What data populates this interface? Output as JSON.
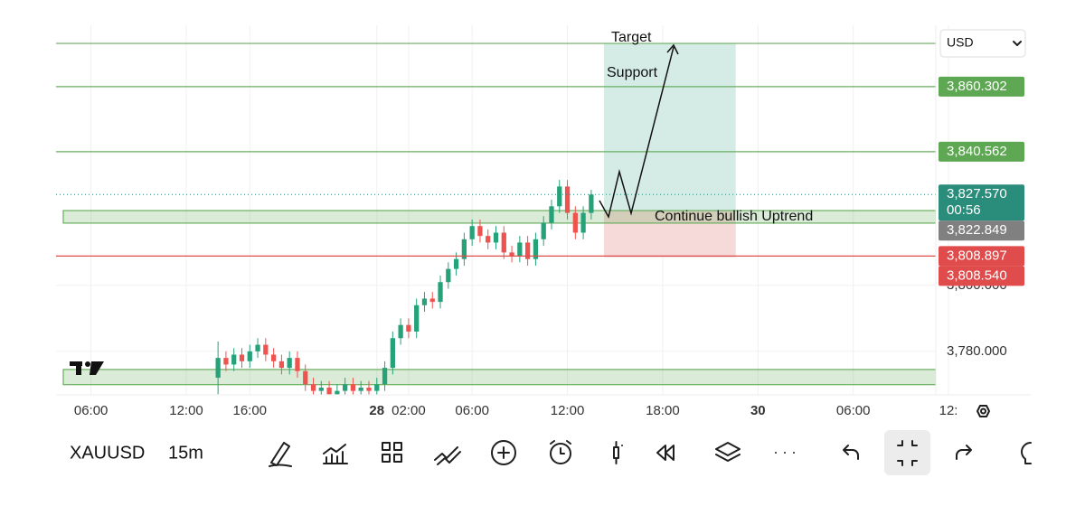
{
  "chart_data": {
    "type": "candlestick",
    "xlim": [
      -2.2,
      53.2
    ],
    "xticks": [
      {
        "value": 0,
        "label": "06:00"
      },
      {
        "value": 6,
        "label": "12:00"
      },
      {
        "value": 10,
        "label": "16:00"
      },
      {
        "value": 18,
        "label": "28"
      },
      {
        "value": 20,
        "label": "02:00"
      },
      {
        "value": 24,
        "label": "06:00"
      },
      {
        "value": 30,
        "label": "12:00"
      },
      {
        "value": 36,
        "label": "18:00"
      },
      {
        "value": 42,
        "label": "30"
      },
      {
        "value": 48,
        "label": "06:00"
      },
      {
        "value": 54,
        "label": "12:"
      }
    ],
    "ylim": [
      3766.8,
      3878.9
    ],
    "yticks": [
      {
        "value": 3780,
        "label": "3,780.000"
      },
      {
        "value": 3800,
        "label": "3,800.000"
      }
    ],
    "grid": true,
    "up_color": "#26a27a",
    "down_color": "#ef5350",
    "x": [
      8,
      8.5,
      9,
      9.5,
      10,
      10.5,
      11,
      11.5,
      12,
      12.5,
      13,
      13.5,
      14,
      14.5,
      15,
      15.5,
      16,
      16.5,
      17,
      17.5,
      18,
      18.5,
      19,
      19.5,
      20,
      20.5,
      21,
      21.5,
      22,
      22.5,
      23,
      23.5,
      24,
      24.5,
      25,
      25.5,
      26,
      26.5,
      27,
      27.5,
      28,
      28.5,
      29,
      29.5,
      30,
      30.5,
      31,
      31.5
    ],
    "open": [
      3772,
      3778,
      3776,
      3779,
      3777,
      3780,
      3782,
      3779,
      3777,
      3775,
      3778,
      3774,
      3770,
      3768,
      3769,
      3767,
      3768,
      3770,
      3768,
      3769,
      3768,
      3770,
      3775,
      3784,
      3788,
      3786,
      3794,
      3796,
      3795,
      3801,
      3805,
      3808,
      3814,
      3818,
      3815,
      3813,
      3816,
      3810,
      3809,
      3813,
      3808,
      3814,
      3819,
      3824,
      3830,
      3822,
      3816,
      3822
    ],
    "high": [
      3783,
      3780,
      3781,
      3781,
      3782,
      3784,
      3784,
      3781,
      3779,
      3780,
      3780,
      3776,
      3772,
      3771,
      3771,
      3770,
      3772,
      3772,
      3771,
      3771,
      3772,
      3777,
      3786,
      3790,
      3790,
      3796,
      3798,
      3798,
      3803,
      3807,
      3810,
      3816,
      3820,
      3820,
      3817,
      3818,
      3818,
      3812,
      3815,
      3815,
      3816,
      3821,
      3826,
      3832,
      3832,
      3824,
      3824,
      3829
    ],
    "low": [
      3767,
      3774,
      3774,
      3775,
      3775,
      3778,
      3777,
      3775,
      3773,
      3773,
      3772,
      3768,
      3766,
      3766,
      3765,
      3765,
      3766,
      3766,
      3766,
      3766,
      3766,
      3768,
      3773,
      3782,
      3784,
      3784,
      3792,
      3793,
      3793,
      3799,
      3803,
      3806,
      3812,
      3813,
      3811,
      3811,
      3808,
      3807,
      3807,
      3806,
      3806,
      3812,
      3817,
      3822,
      3820,
      3814,
      3814,
      3820
    ],
    "close": [
      3778,
      3776,
      3779,
      3777,
      3780,
      3782,
      3779,
      3777,
      3775,
      3778,
      3774,
      3770,
      3768,
      3769,
      3767,
      3768,
      3770,
      3768,
      3769,
      3768,
      3770,
      3775,
      3784,
      3788,
      3786,
      3794,
      3796,
      3795,
      3801,
      3805,
      3808,
      3814,
      3818,
      3815,
      3813,
      3816,
      3810,
      3809,
      3813,
      3808,
      3814,
      3819,
      3824,
      3830,
      3822,
      3816,
      3822,
      3827.57
    ],
    "hlines": [
      {
        "value": 3873.4,
        "color": "#6aae5f"
      },
      {
        "value": 3860.302,
        "color": "#6aae5f"
      },
      {
        "value": 3840.562,
        "color": "#6aae5f"
      },
      {
        "value": 3808.897,
        "color": "#e04b4b"
      }
    ],
    "last_price": {
      "value": 3827.57,
      "color": "#2a8c7a"
    },
    "zones": [
      {
        "from": 3818.9,
        "to": 3822.7,
        "color": "#6aae5f"
      },
      {
        "from": 3769.9,
        "to": 3774.5,
        "color": "#6aae5f"
      }
    ],
    "position": {
      "x0": 32.3,
      "x1": 40.6,
      "target": 3873.4,
      "entry": 3822.849,
      "stop": 3808.54,
      "profit_color": "#d4ebe6",
      "loss_color": "#f6d9d9"
    },
    "price_labels": [
      {
        "value": 3860.302,
        "label": "3,860.302",
        "color": "#5fa853"
      },
      {
        "value": 3840.562,
        "label": "3,840.562",
        "color": "#5fa853"
      },
      {
        "value": 3827.57,
        "label": "3,827.570",
        "countdown": "00:56",
        "color": "#2a8c7a"
      },
      {
        "value": 3822.849,
        "label": "3,822.849",
        "color": "#808080"
      },
      {
        "value": 3808.897,
        "label": "3,808.897",
        "color": "#e04b4b"
      },
      {
        "value": 3808.54,
        "label": "3,808.540",
        "color": "#e04b4b"
      }
    ],
    "annotations": [
      "Target",
      "Support",
      "Continue bullish Uptrend"
    ],
    "currency": "USD"
  },
  "toolbar": {
    "symbol": "XAUUSD",
    "interval": "15m"
  }
}
